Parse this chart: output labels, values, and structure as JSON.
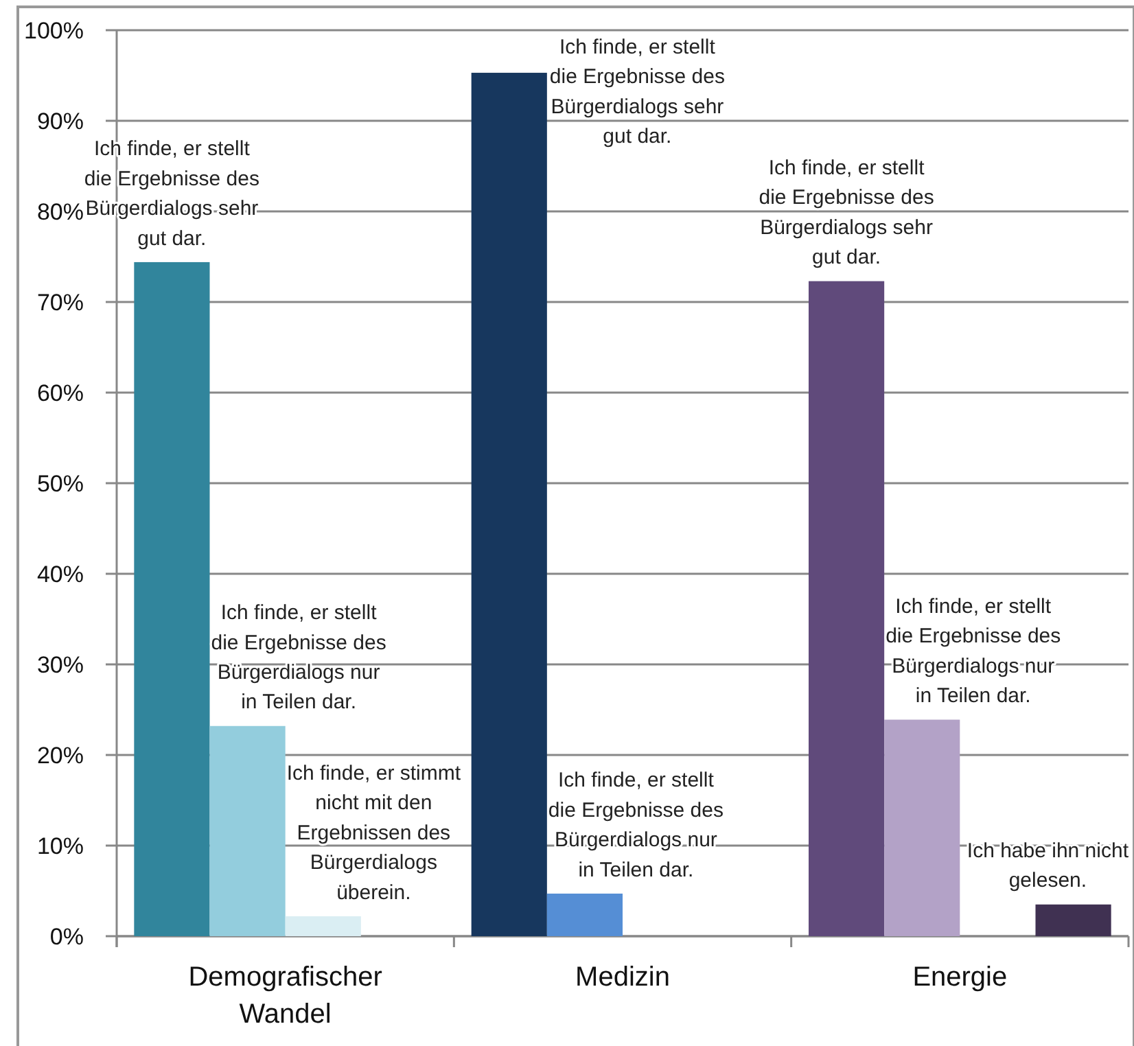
{
  "chart_data": {
    "type": "bar",
    "categories": [
      "Demografischer Wandel",
      "Medizin",
      "Energie"
    ],
    "series": [
      {
        "name": "Ich finde, er stellt die Ergebnisse des Bürgerdialogs sehr gut dar.",
        "colors": [
          "#31859c",
          "#17375e",
          "#604a7b"
        ],
        "values": [
          74.4,
          95.3,
          72.3
        ]
      },
      {
        "name": "Ich finde, er stellt die Ergebnisse des Bürgerdialogs nur in Teilen dar.",
        "colors": [
          "#93cddd",
          "#558ed5",
          "#b3a2c7"
        ],
        "values": [
          23.2,
          4.7,
          23.9
        ]
      },
      {
        "name": "Ich finde, er stimmt nicht mit den Ergebnissen des Bürgerdialogs überein.",
        "colors": [
          "#daeef3",
          null,
          null
        ],
        "values": [
          2.2,
          null,
          null
        ]
      },
      {
        "name": "Ich habe ihn nicht gelesen.",
        "colors": [
          null,
          null,
          "#403152"
        ],
        "values": [
          null,
          null,
          3.5
        ]
      }
    ],
    "ylim": [
      0,
      100
    ],
    "yticks": [
      {
        "value": 0,
        "label": "0%"
      },
      {
        "value": 10,
        "label": "10%"
      },
      {
        "value": 20,
        "label": "20%"
      },
      {
        "value": 30,
        "label": "30%"
      },
      {
        "value": 40,
        "label": "40%"
      },
      {
        "value": 50,
        "label": "50%"
      },
      {
        "value": 60,
        "label": "60%"
      },
      {
        "value": 70,
        "label": "70%"
      },
      {
        "value": 80,
        "label": "80%"
      },
      {
        "value": 90,
        "label": "90%"
      },
      {
        "value": 100,
        "label": "100%"
      }
    ],
    "grid": "y"
  }
}
